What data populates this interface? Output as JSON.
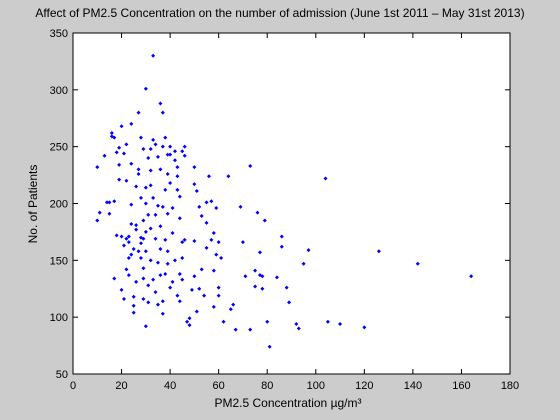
{
  "chart_data": {
    "type": "scatter",
    "title": "Affect of PM2.5 Concentration on the number of admission (June 1st 2011 – May 31st 2013)",
    "xlabel": "PM2.5 Concentration µg/m³",
    "ylabel": "No. of Patients",
    "xlim": [
      0,
      180
    ],
    "ylim": [
      50,
      350
    ],
    "xticks": [
      0,
      20,
      40,
      60,
      80,
      100,
      120,
      140,
      160,
      180
    ],
    "yticks": [
      50,
      100,
      150,
      200,
      250,
      300,
      350
    ],
    "grid": false,
    "marker_color": "#0000ff",
    "background": "#ffffff",
    "figure_background": "#cccccc",
    "series": [
      {
        "points": [
          [
            10,
            185
          ],
          [
            10,
            232
          ],
          [
            11,
            192
          ],
          [
            13,
            242
          ],
          [
            14,
            201
          ],
          [
            15,
            201
          ],
          [
            15,
            191
          ],
          [
            16,
            259
          ],
          [
            16,
            262
          ],
          [
            17,
            258
          ],
          [
            17,
            134
          ],
          [
            17,
            202
          ],
          [
            18,
            172
          ],
          [
            18,
            245
          ],
          [
            19,
            221
          ],
          [
            19,
            249
          ],
          [
            19,
            234
          ],
          [
            20,
            268
          ],
          [
            20,
            124
          ],
          [
            20,
            171
          ],
          [
            21,
            244
          ],
          [
            21,
            163
          ],
          [
            21,
            116
          ],
          [
            22,
            169
          ],
          [
            22,
            142
          ],
          [
            22,
            252
          ],
          [
            22,
            220
          ],
          [
            23,
            171
          ],
          [
            23,
            152
          ],
          [
            23,
            137
          ],
          [
            23,
            166
          ],
          [
            24,
            270
          ],
          [
            24,
            182
          ],
          [
            24,
            155
          ],
          [
            24,
            199
          ],
          [
            24,
            235
          ],
          [
            25,
            160
          ],
          [
            25,
            104
          ],
          [
            25,
            118
          ],
          [
            25,
            110
          ],
          [
            26,
            181
          ],
          [
            26,
            215
          ],
          [
            26,
            131
          ],
          [
            26,
            177
          ],
          [
            27,
            230
          ],
          [
            27,
            280
          ],
          [
            27,
            226
          ],
          [
            27,
            158
          ],
          [
            28,
            165
          ],
          [
            28,
            170
          ],
          [
            28,
            205
          ],
          [
            28,
            152
          ],
          [
            28,
            258
          ],
          [
            29,
            134
          ],
          [
            29,
            143
          ],
          [
            29,
            248
          ],
          [
            29,
            185
          ],
          [
            29,
            116
          ],
          [
            29,
            169
          ],
          [
            30,
            301
          ],
          [
            30,
            214
          ],
          [
            30,
            175
          ],
          [
            30,
            158
          ],
          [
            30,
            200
          ],
          [
            30,
            92
          ],
          [
            31,
            240
          ],
          [
            31,
            190
          ],
          [
            31,
            128
          ],
          [
            31,
            113
          ],
          [
            32,
            248
          ],
          [
            32,
            229
          ],
          [
            32,
            178
          ],
          [
            32,
            150
          ],
          [
            32,
            216
          ],
          [
            33,
            330
          ],
          [
            33,
            256
          ],
          [
            33,
            205
          ],
          [
            33,
            133
          ],
          [
            34,
            190
          ],
          [
            34,
            122
          ],
          [
            34,
            169
          ],
          [
            34,
            252
          ],
          [
            35,
            241
          ],
          [
            35,
            198
          ],
          [
            35,
            148
          ],
          [
            35,
            111
          ],
          [
            36,
            288
          ],
          [
            36,
            230
          ],
          [
            36,
            180
          ],
          [
            36,
            160
          ],
          [
            36,
            137
          ],
          [
            37,
            280
          ],
          [
            37,
            250
          ],
          [
            37,
            197
          ],
          [
            37,
            114
          ],
          [
            37,
            103
          ],
          [
            38,
            212
          ],
          [
            38,
            168
          ],
          [
            38,
            138
          ],
          [
            38,
            258
          ],
          [
            39,
            243
          ],
          [
            39,
            226
          ],
          [
            39,
            191
          ],
          [
            39,
            158
          ],
          [
            39,
            147
          ],
          [
            40,
            243
          ],
          [
            40,
            218
          ],
          [
            40,
            126
          ],
          [
            40,
            250
          ],
          [
            41,
            196
          ],
          [
            41,
            174
          ],
          [
            41,
            131
          ],
          [
            42,
            246
          ],
          [
            42,
            238
          ],
          [
            42,
            150
          ],
          [
            43,
            232
          ],
          [
            43,
            224
          ],
          [
            43,
            212
          ],
          [
            43,
            119
          ],
          [
            44,
            206
          ],
          [
            44,
            187
          ],
          [
            44,
            138
          ],
          [
            44,
            114
          ],
          [
            45,
            246
          ],
          [
            45,
            166
          ],
          [
            45,
            152
          ],
          [
            45,
            133
          ],
          [
            46,
            250
          ],
          [
            46,
            242
          ],
          [
            46,
            168
          ],
          [
            47,
            96
          ],
          [
            48,
            99
          ],
          [
            48,
            93
          ],
          [
            49,
            124
          ],
          [
            50,
            232
          ],
          [
            50,
            217
          ],
          [
            50,
            167
          ],
          [
            50,
            136
          ],
          [
            51,
            211
          ],
          [
            51,
            105
          ],
          [
            52,
            197
          ],
          [
            52,
            125
          ],
          [
            53,
            189
          ],
          [
            53,
            142
          ],
          [
            54,
            119
          ],
          [
            55,
            201
          ],
          [
            55,
            183
          ],
          [
            55,
            161
          ],
          [
            56,
            224
          ],
          [
            57,
            202
          ],
          [
            57,
            168
          ],
          [
            58,
            174
          ],
          [
            58,
            141
          ],
          [
            58,
            109
          ],
          [
            59,
            196
          ],
          [
            59,
            155
          ],
          [
            60,
            166
          ],
          [
            60,
            126
          ],
          [
            60,
            119
          ],
          [
            61,
            152
          ],
          [
            62,
            96
          ],
          [
            64,
            224
          ],
          [
            65,
            107
          ],
          [
            66,
            111
          ],
          [
            67,
            89
          ],
          [
            69,
            197
          ],
          [
            70,
            166
          ],
          [
            71,
            136
          ],
          [
            73,
            89
          ],
          [
            73,
            233
          ],
          [
            75,
            127
          ],
          [
            75,
            141
          ],
          [
            76,
            192
          ],
          [
            77,
            157
          ],
          [
            77,
            137
          ],
          [
            78,
            136
          ],
          [
            78,
            125
          ],
          [
            79,
            185
          ],
          [
            80,
            96
          ],
          [
            81,
            74
          ],
          [
            84,
            135
          ],
          [
            86,
            171
          ],
          [
            86,
            162
          ],
          [
            88,
            126
          ],
          [
            89,
            113
          ],
          [
            92,
            94
          ],
          [
            93,
            90
          ],
          [
            95,
            147
          ],
          [
            97,
            159
          ],
          [
            104,
            222
          ],
          [
            105,
            96
          ],
          [
            110,
            94
          ],
          [
            120,
            91
          ],
          [
            126,
            158
          ],
          [
            142,
            147
          ],
          [
            164,
            136
          ]
        ]
      }
    ]
  }
}
